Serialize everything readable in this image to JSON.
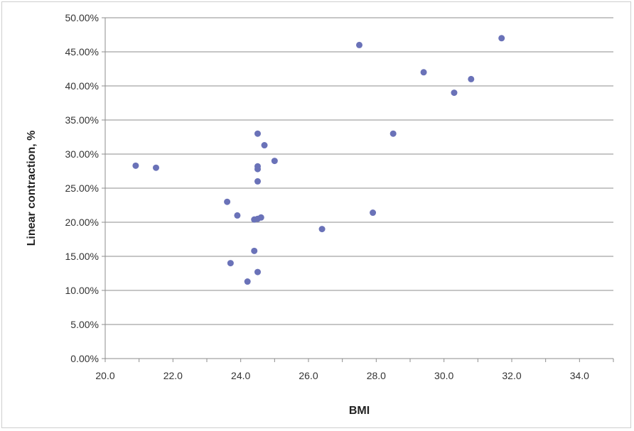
{
  "chart_data": {
    "type": "scatter",
    "title": "",
    "xlabel": "BMI",
    "ylabel": "Linear contraction, %",
    "xlim": [
      20.0,
      35.0
    ],
    "ylim": [
      0,
      0.5
    ],
    "x_ticks": [
      "20.0",
      "22.0",
      "24.0",
      "26.0",
      "28.0",
      "30.0",
      "32.0",
      "34.0"
    ],
    "x_tick_values": [
      20,
      22,
      24,
      26,
      28,
      30,
      32,
      34
    ],
    "y_ticks": [
      "0.00%",
      "5.00%",
      "10.00%",
      "15.00%",
      "20.00%",
      "25.00%",
      "30.00%",
      "35.00%",
      "40.00%",
      "45.00%",
      "50.00%"
    ],
    "y_tick_values": [
      0,
      0.05,
      0.1,
      0.15,
      0.2,
      0.25,
      0.3,
      0.35,
      0.4,
      0.45,
      0.5
    ],
    "grid": "horizontal",
    "legend": "none",
    "marker_color": "#6a72b8",
    "points": [
      {
        "x": 20.9,
        "y": 0.283
      },
      {
        "x": 21.5,
        "y": 0.28
      },
      {
        "x": 23.6,
        "y": 0.23
      },
      {
        "x": 23.7,
        "y": 0.14
      },
      {
        "x": 23.9,
        "y": 0.21
      },
      {
        "x": 24.2,
        "y": 0.113
      },
      {
        "x": 24.4,
        "y": 0.158
      },
      {
        "x": 24.4,
        "y": 0.204
      },
      {
        "x": 24.5,
        "y": 0.205
      },
      {
        "x": 24.5,
        "y": 0.26
      },
      {
        "x": 24.5,
        "y": 0.278
      },
      {
        "x": 24.5,
        "y": 0.282
      },
      {
        "x": 24.5,
        "y": 0.33
      },
      {
        "x": 24.5,
        "y": 0.127
      },
      {
        "x": 24.6,
        "y": 0.207
      },
      {
        "x": 24.7,
        "y": 0.313
      },
      {
        "x": 25.0,
        "y": 0.29
      },
      {
        "x": 26.4,
        "y": 0.19
      },
      {
        "x": 27.5,
        "y": 0.46
      },
      {
        "x": 27.9,
        "y": 0.214
      },
      {
        "x": 28.5,
        "y": 0.33
      },
      {
        "x": 29.4,
        "y": 0.42
      },
      {
        "x": 30.3,
        "y": 0.39
      },
      {
        "x": 30.8,
        "y": 0.41
      },
      {
        "x": 31.7,
        "y": 0.47
      }
    ]
  }
}
